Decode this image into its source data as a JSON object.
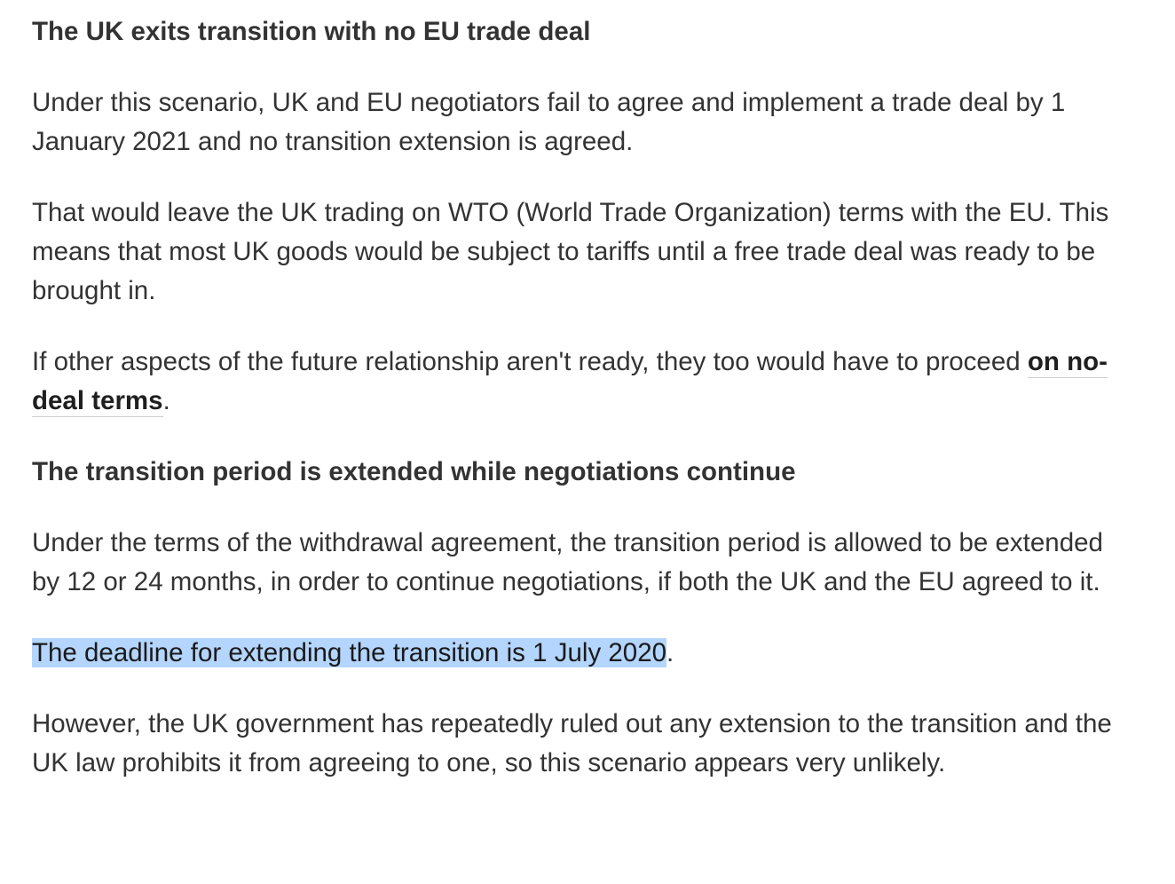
{
  "article": {
    "heading_1": "The UK exits transition with no EU trade deal",
    "para_1": "Under this scenario, UK and EU negotiators fail to agree and implement a trade deal by 1 January 2021 and no transition extension is agreed.",
    "para_2": "That would leave the UK trading on WTO (World Trade Organization) terms with the EU. This means that most UK goods would be subject to tariffs until a free trade deal was ready to be brought in.",
    "para_3_start": "If other aspects of the future relationship aren't ready, they too would have to proceed ",
    "para_3_link": "on no-deal terms",
    "para_3_end": ".",
    "heading_2": "The transition period is extended while negotiations continue",
    "para_4": "Under the terms of the withdrawal agreement, the transition period is allowed to be extended by 12 or 24 months, in order to continue negotiations, if both the UK and the EU agreed to it.",
    "para_5_highlighted": "The deadline for extending the transition is 1 July 2020",
    "para_5_end": ".",
    "para_6": "However, the UK government has repeatedly ruled out any extension to the transition and the UK law prohibits it from agreeing to one, so this scenario appears very unlikely."
  },
  "colors": {
    "text": "#333333",
    "selection_highlight": "#b4d5fe",
    "link_underline": "#cfcfcf"
  }
}
